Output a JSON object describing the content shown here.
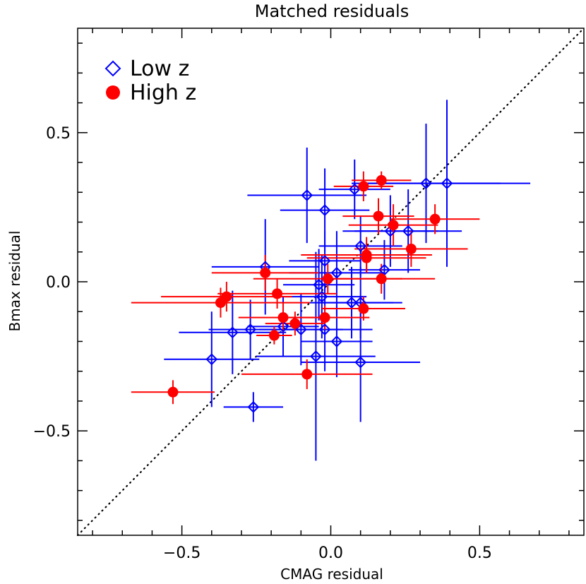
{
  "chart_data": {
    "type": "scatter",
    "title": "Matched residuals",
    "xlabel": "CMAG residual",
    "ylabel": "Bmax residual",
    "xlim": [
      -0.85,
      0.85
    ],
    "ylim": [
      -0.85,
      0.85
    ],
    "xticks": [
      -0.5,
      0.0,
      0.5
    ],
    "xtick_labels": [
      "−0.5",
      "0.0",
      "0.5"
    ],
    "yticks": [
      -0.5,
      0.0,
      0.5
    ],
    "ytick_labels": [
      "−0.5",
      "0.0",
      "0.5"
    ],
    "legend_position": "top-left",
    "reference_line": "y = x (dotted)",
    "series": [
      {
        "name": "Low z",
        "color": "#0000ff",
        "marker": "open-diamond",
        "points": [
          {
            "x": -0.08,
            "y": 0.29,
            "xerr": 0.2,
            "yerr": 0.16
          },
          {
            "x": 0.08,
            "y": 0.31,
            "xerr": 0.12,
            "yerr": 0.1
          },
          {
            "x": -0.02,
            "y": 0.24,
            "xerr": 0.15,
            "yerr": 0.14
          },
          {
            "x": 0.32,
            "y": 0.33,
            "xerr": 0.25,
            "yerr": 0.2
          },
          {
            "x": 0.39,
            "y": 0.33,
            "xerr": 0.28,
            "yerr": 0.28
          },
          {
            "x": 0.2,
            "y": 0.17,
            "xerr": 0.16,
            "yerr": 0.12
          },
          {
            "x": 0.26,
            "y": 0.17,
            "xerr": 0.18,
            "yerr": 0.14
          },
          {
            "x": 0.1,
            "y": 0.12,
            "xerr": 0.14,
            "yerr": 0.1
          },
          {
            "x": -0.02,
            "y": 0.07,
            "xerr": 0.12,
            "yerr": 0.1
          },
          {
            "x": 0.18,
            "y": 0.04,
            "xerr": 0.12,
            "yerr": 0.1
          },
          {
            "x": 0.02,
            "y": 0.03,
            "xerr": 0.16,
            "yerr": 0.14
          },
          {
            "x": -0.22,
            "y": 0.05,
            "xerr": 0.18,
            "yerr": 0.16
          },
          {
            "x": -0.04,
            "y": -0.01,
            "xerr": 0.12,
            "yerr": 0.12
          },
          {
            "x": -0.03,
            "y": -0.05,
            "xerr": 0.15,
            "yerr": 0.14
          },
          {
            "x": 0.07,
            "y": -0.07,
            "xerr": 0.14,
            "yerr": 0.12
          },
          {
            "x": 0.1,
            "y": -0.07,
            "xerr": 0.14,
            "yerr": 0.12
          },
          {
            "x": -0.02,
            "y": -0.16,
            "xerr": 0.16,
            "yerr": 0.14
          },
          {
            "x": -0.1,
            "y": -0.16,
            "xerr": 0.14,
            "yerr": 0.12
          },
          {
            "x": -0.16,
            "y": -0.15,
            "xerr": 0.12,
            "yerr": 0.1
          },
          {
            "x": -0.27,
            "y": -0.16,
            "xerr": 0.14,
            "yerr": 0.1
          },
          {
            "x": -0.33,
            "y": -0.17,
            "xerr": 0.18,
            "yerr": 0.14
          },
          {
            "x": 0.02,
            "y": -0.2,
            "xerr": 0.12,
            "yerr": 0.12
          },
          {
            "x": -0.05,
            "y": -0.25,
            "xerr": 0.2,
            "yerr": 0.35
          },
          {
            "x": 0.1,
            "y": -0.27,
            "xerr": 0.2,
            "yerr": 0.2
          },
          {
            "x": -0.4,
            "y": -0.26,
            "xerr": 0.16,
            "yerr": 0.16
          },
          {
            "x": -0.26,
            "y": -0.42,
            "xerr": 0.1,
            "yerr": 0.05
          }
        ]
      },
      {
        "name": "High z",
        "color": "#ff0000",
        "marker": "filled-circle",
        "points": [
          {
            "x": 0.17,
            "y": 0.34,
            "xerr": 0.1,
            "yerr": 0.03
          },
          {
            "x": 0.11,
            "y": 0.32,
            "xerr": 0.1,
            "yerr": 0.05
          },
          {
            "x": 0.16,
            "y": 0.22,
            "xerr": 0.12,
            "yerr": 0.06
          },
          {
            "x": 0.21,
            "y": 0.19,
            "xerr": 0.15,
            "yerr": 0.07
          },
          {
            "x": 0.35,
            "y": 0.21,
            "xerr": 0.15,
            "yerr": 0.05
          },
          {
            "x": 0.27,
            "y": 0.11,
            "xerr": 0.19,
            "yerr": 0.06
          },
          {
            "x": 0.12,
            "y": 0.09,
            "xerr": 0.22,
            "yerr": 0.06
          },
          {
            "x": 0.12,
            "y": 0.08,
            "xerr": 0.2,
            "yerr": 0.05
          },
          {
            "x": 0.17,
            "y": 0.01,
            "xerr": 0.18,
            "yerr": 0.05
          },
          {
            "x": -0.22,
            "y": 0.03,
            "xerr": 0.18,
            "yerr": 0.06
          },
          {
            "x": -0.01,
            "y": 0.01,
            "xerr": 0.25,
            "yerr": 0.05
          },
          {
            "x": -0.35,
            "y": -0.05,
            "xerr": 0.22,
            "yerr": 0.05
          },
          {
            "x": -0.37,
            "y": -0.07,
            "xerr": 0.3,
            "yerr": 0.05
          },
          {
            "x": -0.18,
            "y": -0.04,
            "xerr": 0.2,
            "yerr": 0.05
          },
          {
            "x": 0.11,
            "y": -0.09,
            "xerr": 0.14,
            "yerr": 0.04
          },
          {
            "x": -0.16,
            "y": -0.12,
            "xerr": 0.15,
            "yerr": 0.05
          },
          {
            "x": -0.02,
            "y": -0.12,
            "xerr": 0.15,
            "yerr": 0.04
          },
          {
            "x": -0.12,
            "y": -0.14,
            "xerr": 0.1,
            "yerr": 0.04
          },
          {
            "x": -0.19,
            "y": -0.18,
            "xerr": 0.06,
            "yerr": 0.03
          },
          {
            "x": -0.08,
            "y": -0.31,
            "xerr": 0.22,
            "yerr": 0.05
          },
          {
            "x": -0.53,
            "y": -0.37,
            "xerr": 0.14,
            "yerr": 0.04
          }
        ]
      }
    ]
  }
}
